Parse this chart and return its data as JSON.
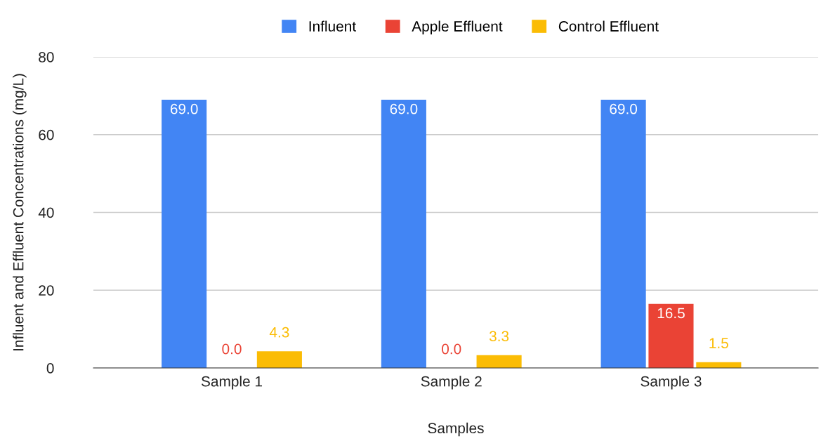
{
  "chart_data": {
    "type": "bar",
    "xlabel": "Samples",
    "ylabel": "Influent and Effluent Concentrations (mg/L)",
    "categories": [
      "Sample 1",
      "Sample 2",
      "Sample 3"
    ],
    "series": [
      {
        "name": "Influent",
        "color": "#4285f4",
        "values": [
          69.0,
          69.0,
          69.0
        ],
        "value_labels": [
          "69.0",
          "69.0",
          "69.0"
        ]
      },
      {
        "name": "Apple Effluent",
        "color": "#ea4335",
        "values": [
          0.0,
          0.0,
          16.5
        ],
        "value_labels": [
          "0.0",
          "0.0",
          "16.5"
        ]
      },
      {
        "name": "Control Effluent",
        "color": "#fbbc04",
        "values": [
          4.3,
          3.3,
          1.5
        ],
        "value_labels": [
          "4.3",
          "3.3",
          "1.5"
        ]
      }
    ],
    "ylim": [
      0,
      80
    ],
    "yticks": [
      0,
      20,
      40,
      60,
      80
    ],
    "grid": "y",
    "legend": "top"
  }
}
